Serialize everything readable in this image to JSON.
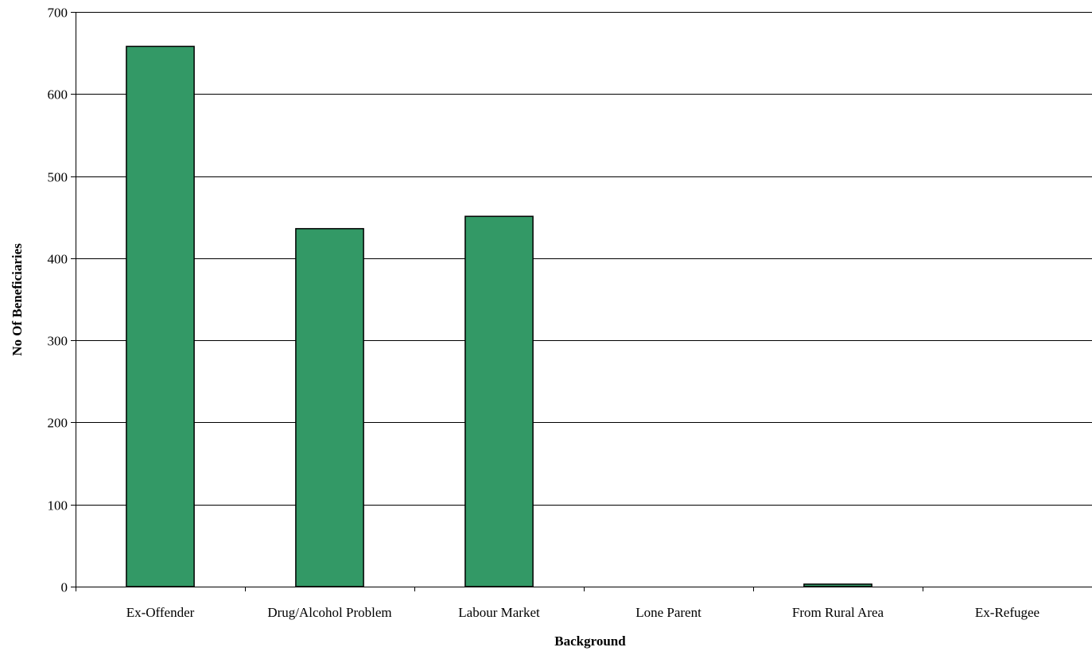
{
  "chart_data": {
    "type": "bar",
    "title": "",
    "xlabel": "Background",
    "ylabel": "No Of Beneficiaries",
    "categories": [
      "Ex-Offender",
      "Drug/Alcohol Problem",
      "Labour Market",
      "Lone Parent",
      "From Rural Area",
      "Ex-Refugee"
    ],
    "values": [
      658,
      436,
      451,
      0,
      3,
      0
    ],
    "ylim": [
      0,
      700
    ],
    "yticks": [
      0,
      100,
      200,
      300,
      400,
      500,
      600,
      700
    ],
    "grid": true,
    "legend": "none",
    "colors": {
      "bar_fill": "#339966",
      "bar_stroke": "#000000",
      "axis": "#000000",
      "grid": "#000000"
    }
  }
}
